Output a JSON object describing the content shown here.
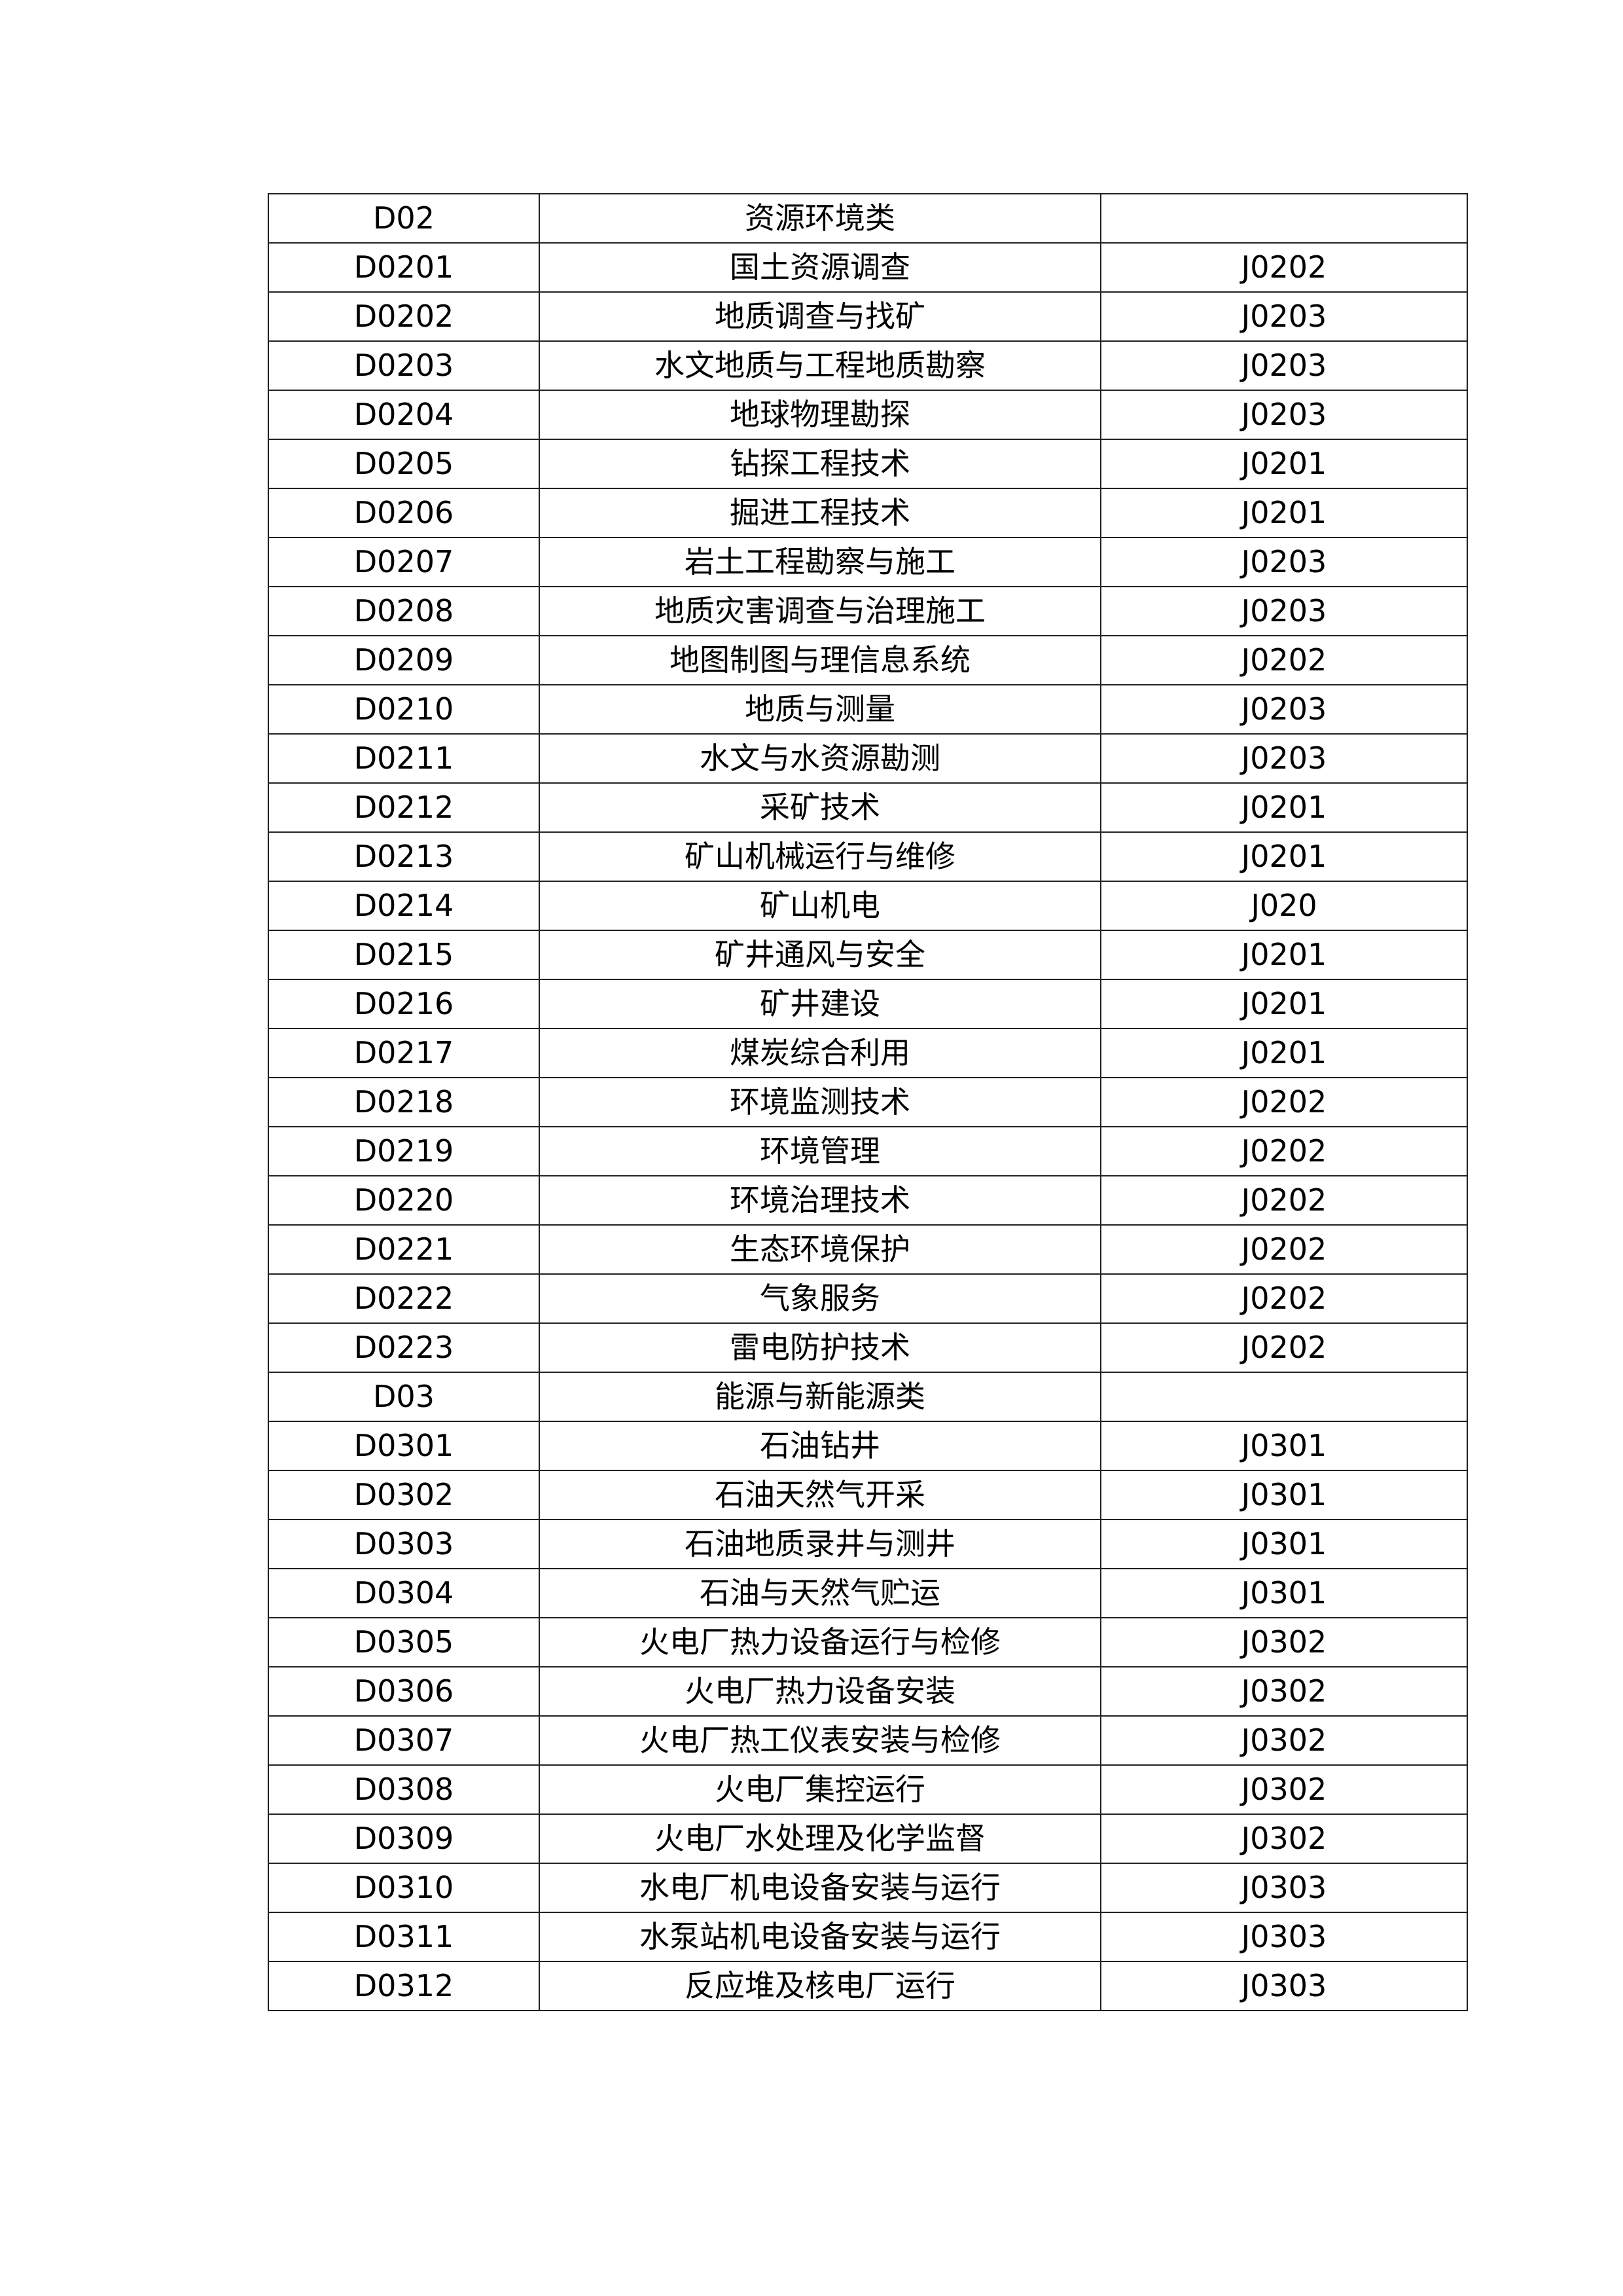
{
  "rows": [
    {
      "code": "D02",
      "name": "资源环境类",
      "ref": ""
    },
    {
      "code": "D0201",
      "name": "国土资源调查",
      "ref": "J0202"
    },
    {
      "code": "D0202",
      "name": "地质调查与找矿",
      "ref": "J0203"
    },
    {
      "code": "D0203",
      "name": "水文地质与工程地质勘察",
      "ref": "J0203"
    },
    {
      "code": "D0204",
      "name": "地球物理勘探",
      "ref": "J0203"
    },
    {
      "code": "D0205",
      "name": "钻探工程技术",
      "ref": "J0201"
    },
    {
      "code": "D0206",
      "name": "掘进工程技术",
      "ref": "J0201"
    },
    {
      "code": "D0207",
      "name": "岩土工程勘察与施工",
      "ref": "J0203"
    },
    {
      "code": "D0208",
      "name": "地质灾害调查与治理施工",
      "ref": "J0203"
    },
    {
      "code": "D0209",
      "name": "地图制图与理信息系统",
      "ref": "J0202"
    },
    {
      "code": "D0210",
      "name": "地质与测量",
      "ref": "J0203"
    },
    {
      "code": "D0211",
      "name": "水文与水资源勘测",
      "ref": "J0203"
    },
    {
      "code": "D0212",
      "name": "采矿技术",
      "ref": "J0201"
    },
    {
      "code": "D0213",
      "name": "矿山机械运行与维修",
      "ref": "J0201"
    },
    {
      "code": "D0214",
      "name": "矿山机电",
      "ref": "J020"
    },
    {
      "code": "D0215",
      "name": "矿井通风与安全",
      "ref": "J0201"
    },
    {
      "code": "D0216",
      "name": "矿井建设",
      "ref": "J0201"
    },
    {
      "code": "D0217",
      "name": "煤炭综合利用",
      "ref": "J0201"
    },
    {
      "code": "D0218",
      "name": "环境监测技术",
      "ref": "J0202"
    },
    {
      "code": "D0219",
      "name": "环境管理",
      "ref": "J0202"
    },
    {
      "code": "D0220",
      "name": "环境治理技术",
      "ref": "J0202"
    },
    {
      "code": "D0221",
      "name": "生态环境保护",
      "ref": "J0202"
    },
    {
      "code": "D0222",
      "name": "气象服务",
      "ref": "J0202"
    },
    {
      "code": "D0223",
      "name": "雷电防护技术",
      "ref": "J0202"
    },
    {
      "code": "D03",
      "name": "能源与新能源类",
      "ref": ""
    },
    {
      "code": "D0301",
      "name": "石油钻井",
      "ref": "J0301"
    },
    {
      "code": "D0302",
      "name": "石油天然气开采",
      "ref": "J0301"
    },
    {
      "code": "D0303",
      "name": "石油地质录井与测井",
      "ref": "J0301"
    },
    {
      "code": "D0304",
      "name": "石油与天然气贮运",
      "ref": "J0301"
    },
    {
      "code": "D0305",
      "name": "火电厂热力设备运行与检修",
      "ref": "J0302"
    },
    {
      "code": "D0306",
      "name": "火电厂热力设备安装",
      "ref": "J0302"
    },
    {
      "code": "D0307",
      "name": "火电厂热工仪表安装与检修",
      "ref": "J0302"
    },
    {
      "code": "D0308",
      "name": "火电厂集控运行",
      "ref": "J0302"
    },
    {
      "code": "D0309",
      "name": "火电厂水处理及化学监督",
      "ref": "J0302"
    },
    {
      "code": "D0310",
      "name": "水电厂机电设备安装与运行",
      "ref": "J0303"
    },
    {
      "code": "D0311",
      "name": "水泵站机电设备安装与运行",
      "ref": "J0303"
    },
    {
      "code": "D0312",
      "name": "反应堆及核电厂运行",
      "ref": "J0303"
    }
  ]
}
